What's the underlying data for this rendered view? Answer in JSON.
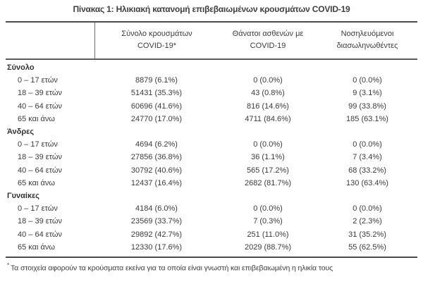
{
  "title": "Πίνακας 1: Ηλικιακή κατανομή επιβεβαιωμένων κρουσμάτων COVID-19",
  "table": {
    "columns": [
      {
        "line1": "Σύνολο κρουσμάτων",
        "line2": "COVID-19*"
      },
      {
        "line1": "Θάνατοι ασθενών με",
        "line2": "COVID-19"
      },
      {
        "line1": "Νοσηλευόμενοι",
        "line2": "διασωληνωθέντες"
      }
    ],
    "sections": [
      {
        "label": "Σύνολο",
        "rows": [
          {
            "age": "0 – 17 ετών",
            "cases": "8879 (6.1%)",
            "deaths": "0 (0.0%)",
            "intubated": "0 (0.0%)"
          },
          {
            "age": "18 – 39 ετών",
            "cases": "51431 (35.3%)",
            "deaths": "43 (0.8%)",
            "intubated": "9 (3.1%)"
          },
          {
            "age": "40 – 64 ετών",
            "cases": "60696 (41.6%)",
            "deaths": "816 (14.6%)",
            "intubated": "99 (33.8%)"
          },
          {
            "age": "65 και άνω",
            "cases": "24770 (17.0%)",
            "deaths": "4711 (84.6%)",
            "intubated": "185 (63.1%)"
          }
        ]
      },
      {
        "label": "Άνδρες",
        "rows": [
          {
            "age": "0 – 17 ετών",
            "cases": "4694 (6.2%)",
            "deaths": "0 (0.0%)",
            "intubated": "0 (0.0%)"
          },
          {
            "age": "18 – 39 ετών",
            "cases": "27856 (36.8%)",
            "deaths": "36 (1.1%)",
            "intubated": "7 (3.4%)"
          },
          {
            "age": "40 – 64 ετών",
            "cases": "30792 (40.6%)",
            "deaths": "565 (17.2%)",
            "intubated": "68 (33.2%)"
          },
          {
            "age": "65 και άνω",
            "cases": "12437 (16.4%)",
            "deaths": "2682 (81.7%)",
            "intubated": "130 (63.4%)"
          }
        ]
      },
      {
        "label": "Γυναίκες",
        "rows": [
          {
            "age": "0 – 17 ετών",
            "cases": "4184 (6.0%)",
            "deaths": "0 (0.0%)",
            "intubated": "0 (0.0%)"
          },
          {
            "age": "18 – 39 ετών",
            "cases": "23569 (33.7%)",
            "deaths": "7 (0.3%)",
            "intubated": "2 (2.3%)"
          },
          {
            "age": "40 – 64 ετών",
            "cases": "29892 (42.7%)",
            "deaths": "251 (11.0%)",
            "intubated": "31 (35.2%)"
          },
          {
            "age": "65 και άνω",
            "cases": "12330 (17.6%)",
            "deaths": "2029 (88.7%)",
            "intubated": "55 (62.5%)"
          }
        ]
      }
    ]
  },
  "footnote": {
    "marker": "*",
    "text": "Τα στοιχεία αφορούν τα κρούσματα εκείνα για τα οποία είναι γνωστή και επιβεβαιωμένη η ηλικία τους"
  },
  "colors": {
    "text": "#3b3b3b",
    "rule_dark": "#4c4c4c",
    "background": "#ffffff"
  }
}
